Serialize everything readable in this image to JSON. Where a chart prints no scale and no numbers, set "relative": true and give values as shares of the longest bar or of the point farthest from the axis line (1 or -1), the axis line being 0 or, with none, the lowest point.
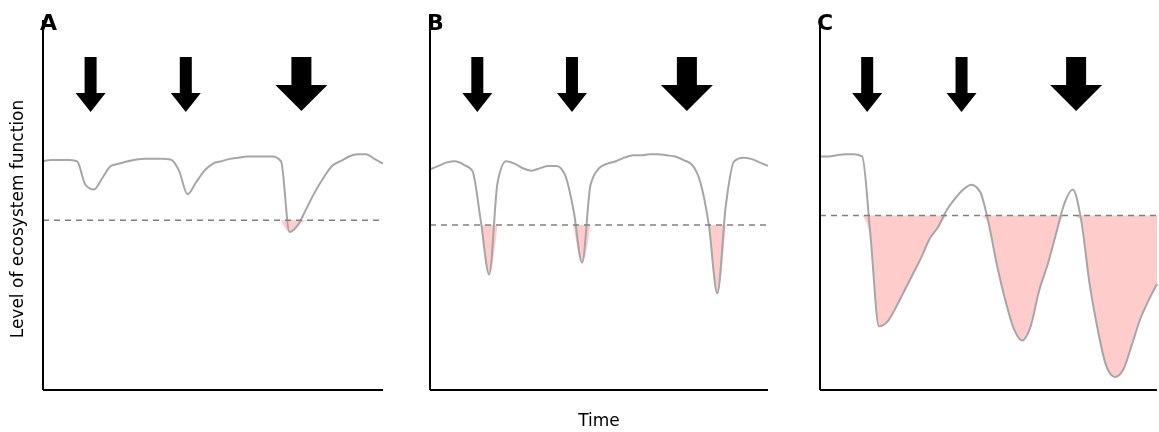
{
  "chart_data": [
    {
      "type": "line",
      "title": "A",
      "ylabel": "Level of ecosystem function",
      "relative": true,
      "categories": [
        null,
        null,
        null,
        null,
        null,
        null,
        null,
        null,
        null,
        null,
        null,
        null,
        null,
        null,
        null,
        null,
        null,
        null,
        null,
        null,
        null,
        null,
        null,
        null,
        null,
        null,
        null,
        null,
        null,
        null,
        null,
        null,
        null,
        null,
        null,
        null,
        null,
        null,
        null,
        null,
        null
      ],
      "series": [
        {
          "color": "#a6a6a6",
          "values": [
            0.97,
            0.975,
            0.975,
            0.975,
            0.97,
            0.87,
            0.85,
            0.9,
            0.95,
            0.96,
            0.97,
            0.977,
            0.98,
            0.98,
            0.98,
            0.977,
            0.93,
            0.83,
            0.88,
            0.93,
            0.96,
            0.97,
            0.98,
            0.985,
            0.99,
            0.99,
            0.99,
            0.99,
            0.97,
            0.67,
            0.7,
            0.77,
            0.84,
            0.9,
            0.95,
            0.97,
            0.99,
            1,
            1,
            0.98,
            0.96
          ]
        },
        {
          "type": "area",
          "color": "#ffcccc",
          "values": [
            null,
            null,
            null,
            null,
            null,
            null,
            null,
            null,
            null,
            null,
            null,
            null,
            null,
            null,
            null,
            null,
            null,
            null,
            null,
            null,
            null,
            null,
            null,
            null,
            null,
            null,
            null,
            null,
            0.72,
            0.72,
            0.72,
            0.72,
            null,
            null,
            null,
            null,
            null,
            null,
            null,
            null,
            null
          ]
        }
      ],
      "ref_lines": [
        {
          "axis": "y",
          "value": 0.72,
          "color": "#808080",
          "line_style": "dashed"
        }
      ]
    },
    {
      "type": "line",
      "title": "B",
      "xlabel": "Time",
      "relative": true,
      "categories": [
        null,
        null,
        null,
        null,
        null,
        null,
        null,
        null,
        null,
        null,
        null,
        null,
        null,
        null,
        null,
        null,
        null,
        null,
        null,
        null,
        null,
        null,
        null,
        null,
        null,
        null,
        null,
        null,
        null,
        null,
        null,
        null,
        null,
        null,
        null,
        null,
        null,
        null,
        null,
        null,
        null
      ],
      "series": [
        {
          "color": "#a6a6a6",
          "values": [
            0.936,
            0.95,
            0.965,
            0.97,
            0.955,
            0.93,
            0.72,
            0.49,
            0.88,
            0.97,
            0.96,
            0.94,
            0.93,
            0.94,
            0.95,
            0.95,
            0.91,
            0.76,
            0.54,
            0.87,
            0.94,
            0.96,
            0.97,
            0.985,
            0.995,
            0.995,
            1,
            1,
            0.995,
            0.99,
            0.975,
            0.955,
            0.88,
            0.7,
            0.41,
            0.78,
            0.97,
            0.985,
            0.98,
            0.965,
            0.95
          ]
        },
        {
          "type": "area",
          "color": "#ffcccc",
          "values": [
            null,
            null,
            null,
            null,
            null,
            null,
            0.7,
            0.7,
            0.7,
            null,
            null,
            null,
            null,
            null,
            null,
            null,
            null,
            0.7,
            0.7,
            0.7,
            null,
            null,
            null,
            null,
            null,
            null,
            null,
            null,
            null,
            null,
            null,
            null,
            null,
            0.7,
            0.7,
            0.7,
            null,
            null,
            null,
            null,
            null
          ]
        }
      ],
      "ref_lines": [
        {
          "axis": "y",
          "value": 0.7,
          "color": "#808080",
          "line_style": "dashed"
        }
      ]
    },
    {
      "type": "line",
      "title": "C",
      "relative": true,
      "categories": [
        null,
        null,
        null,
        null,
        null,
        null,
        null,
        null,
        null,
        null,
        null,
        null,
        null,
        null,
        null,
        null,
        null,
        null,
        null,
        null,
        null,
        null,
        null,
        null,
        null,
        null,
        null,
        null,
        null,
        null,
        null,
        null,
        null,
        null,
        null,
        null,
        null,
        null,
        null,
        null,
        null
      ],
      "series": [
        {
          "color": "#a6a6a6",
          "values": [
            0.99,
            0.99,
            0.995,
            1,
            1,
            0.99,
            0.65,
            0.27,
            0.29,
            0.35,
            0.42,
            0.49,
            0.56,
            0.64,
            0.69,
            0.76,
            0.81,
            0.85,
            0.87,
            0.84,
            0.71,
            0.53,
            0.38,
            0.26,
            0.21,
            0.27,
            0.42,
            0.53,
            0.66,
            0.79,
            0.85,
            0.72,
            0.45,
            0.25,
            0.1,
            0.055,
            0.087,
            0.19,
            0.3,
            0.38,
            0.45
          ]
        },
        {
          "type": "area",
          "color": "#ffcccc",
          "values": [
            null,
            null,
            null,
            null,
            null,
            0.74,
            0.74,
            0.74,
            0.74,
            0.74,
            0.74,
            0.74,
            0.74,
            0.74,
            0.74,
            0.74,
            null,
            null,
            null,
            0.74,
            0.74,
            0.74,
            0.74,
            0.74,
            0.74,
            0.74,
            0.74,
            0.74,
            0.74,
            0.74,
            0.74,
            0.74,
            0.74,
            0.74,
            0.74,
            0.74,
            0.74,
            0.74,
            0.74,
            0.74,
            0.74
          ]
        }
      ],
      "ref_lines": [
        {
          "axis": "y",
          "value": 0.74,
          "color": "#808080",
          "line_style": "dashed"
        }
      ]
    }
  ]
}
